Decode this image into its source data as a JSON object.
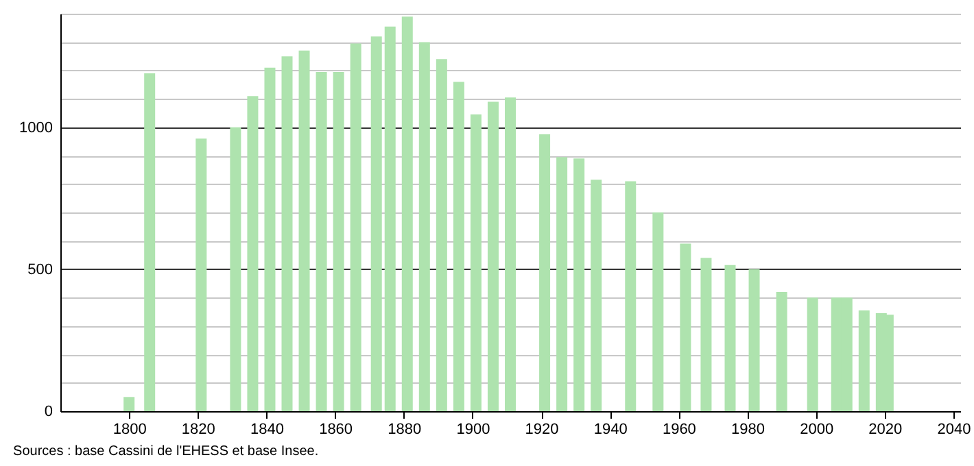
{
  "chart_data": {
    "type": "bar",
    "color": "#aee3ae",
    "x": [
      1800,
      1806,
      1821,
      1831,
      1836,
      1841,
      1846,
      1851,
      1856,
      1861,
      1866,
      1872,
      1876,
      1881,
      1886,
      1891,
      1896,
      1901,
      1906,
      1911,
      1921,
      1926,
      1931,
      1936,
      1946,
      1954,
      1962,
      1968,
      1975,
      1982,
      1990,
      1999,
      2006,
      2009,
      2014,
      2019,
      2021
    ],
    "values": [
      50,
      1190,
      960,
      1000,
      1110,
      1210,
      1250,
      1270,
      1195,
      1195,
      1295,
      1320,
      1355,
      1390,
      1300,
      1240,
      1160,
      1045,
      1090,
      1105,
      975,
      895,
      890,
      815,
      810,
      700,
      590,
      540,
      515,
      500,
      420,
      400,
      400,
      400,
      355,
      345,
      340
    ],
    "xlim": [
      1780,
      2042
    ],
    "xticks": [
      1800,
      1820,
      1840,
      1860,
      1880,
      1900,
      1920,
      1940,
      1960,
      1980,
      2000,
      2020,
      2040
    ],
    "ylim": [
      0,
      1400
    ],
    "yticks": [
      0,
      {
        "value": 100,
        "label": null
      },
      {
        "value": 200,
        "label": null
      },
      {
        "value": 300,
        "label": null
      },
      {
        "value": 400,
        "label": null
      },
      500,
      {
        "value": 600,
        "label": null
      },
      {
        "value": 700,
        "label": null
      },
      {
        "value": 800,
        "label": null
      },
      {
        "value": 900,
        "label": null
      },
      1000,
      {
        "value": 1100,
        "label": null
      },
      {
        "value": 1200,
        "label": null
      },
      {
        "value": 1300,
        "label": null
      },
      {
        "value": 1400,
        "label": null
      }
    ],
    "grid": "y",
    "annotations": [
      "Sources : base Cassini de l'EHESS et base Insee."
    ]
  }
}
